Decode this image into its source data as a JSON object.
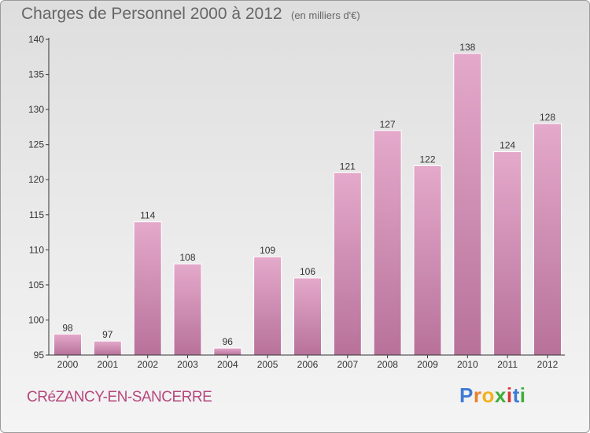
{
  "header": {
    "title": "Charges de Personnel 2000 à 2012",
    "unit": "(en milliers d'€)"
  },
  "footer": {
    "town": "CRéZANCY-EN-SANCERRE",
    "logo": [
      "P",
      "r",
      "o",
      "x",
      "i",
      "t",
      "i"
    ],
    "logo_colors": [
      "#3e7bd6",
      "#e8822d",
      "#f2b21d",
      "#3fae3a",
      "#d83535",
      "#3e7bd6",
      "#3fae3a"
    ]
  },
  "colors": {
    "bar_top": "#e4a9cb",
    "bar_bottom": "#b8729a",
    "axis": "#333333"
  },
  "chart_data": {
    "type": "bar",
    "categories": [
      "2000",
      "2001",
      "2002",
      "2003",
      "2004",
      "2005",
      "2006",
      "2007",
      "2008",
      "2009",
      "2010",
      "2011",
      "2012"
    ],
    "values": [
      98,
      97,
      114,
      108,
      96,
      109,
      106,
      121,
      127,
      122,
      138,
      124,
      128
    ],
    "ylim": [
      95,
      140
    ],
    "yticks": [
      95,
      100,
      105,
      110,
      115,
      120,
      125,
      130,
      135,
      140
    ],
    "grid": false
  }
}
